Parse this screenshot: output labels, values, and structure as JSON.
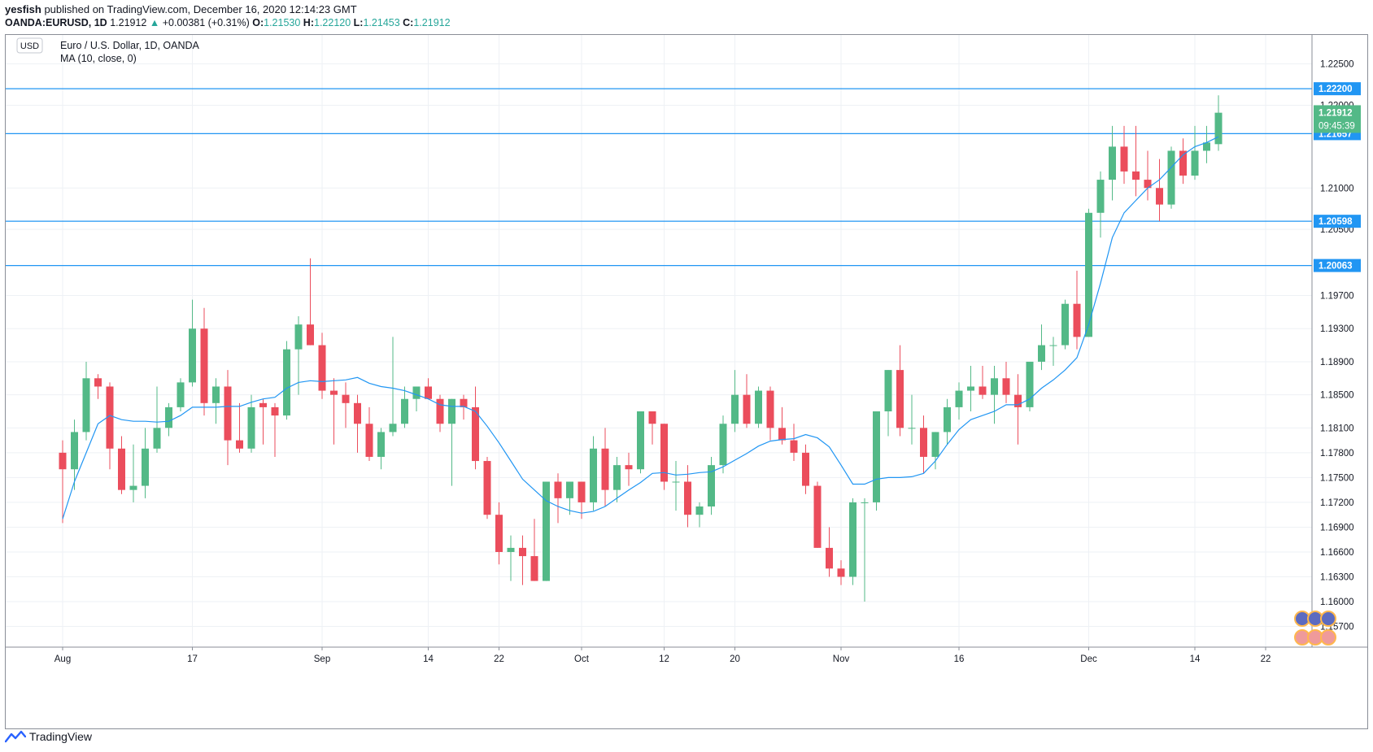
{
  "header": {
    "author": "yesfish",
    "published_text": "published on TradingView.com, December 16, 2020 12:14:23 GMT",
    "symbol": "OANDA:EURUSD, 1D",
    "last": "1.21912",
    "change_arrow": "▲",
    "change": "+0.00381 (+0.31%)",
    "o_label": "O:",
    "o": "1.21530",
    "h_label": "H:",
    "h": "1.22120",
    "l_label": "L:",
    "l": "1.21453",
    "c_label": "C:",
    "c": "1.21912"
  },
  "legend": {
    "currency_badge": "USD",
    "title": "Euro / U.S. Dollar, 1D, OANDA",
    "indicator": "MA (10, close, 0)"
  },
  "footer": {
    "brand": "TradingView",
    "logo_icon": "tradingview-logo-icon"
  },
  "colors": {
    "up": "#53b987",
    "down": "#eb4d5c",
    "ma": "#2196f3",
    "hline": "#2196f3",
    "grid": "#eef1f5",
    "axis_text": "#131722",
    "price_tag": "#53b987",
    "hline_tag": "#2196f3"
  },
  "chart_data": {
    "type": "candlestick",
    "title": "Euro / U.S. Dollar, 1D, OANDA",
    "y_axis": {
      "ticks": [
        "1.22500",
        "1.22000",
        "1.21000",
        "1.20500",
        "1.19700",
        "1.19300",
        "1.18900",
        "1.18500",
        "1.18100",
        "1.17800",
        "1.17500",
        "1.17200",
        "1.16900",
        "1.16600",
        "1.16300",
        "1.16000",
        "1.15700"
      ],
      "range": [
        1.1545,
        1.2285
      ]
    },
    "x_axis": {
      "labels": [
        {
          "text": "Aug",
          "index": 0
        },
        {
          "text": "17",
          "index": 11
        },
        {
          "text": "Sep",
          "index": 22
        },
        {
          "text": "14",
          "index": 31
        },
        {
          "text": "22",
          "index": 37
        },
        {
          "text": "Oct",
          "index": 44
        },
        {
          "text": "12",
          "index": 51
        },
        {
          "text": "20",
          "index": 57
        },
        {
          "text": "Nov",
          "index": 66
        },
        {
          "text": "16",
          "index": 76
        },
        {
          "text": "Dec",
          "index": 87
        },
        {
          "text": "14",
          "index": 96
        },
        {
          "text": "22",
          "index": 102
        }
      ]
    },
    "horizontal_lines": [
      {
        "price": 1.222,
        "label": "1.22200"
      },
      {
        "price": 1.21657,
        "label": "1.21657"
      },
      {
        "price": 1.20598,
        "label": "1.20598"
      },
      {
        "price": 1.20063,
        "label": "1.20063"
      }
    ],
    "price_tag": {
      "price": 1.21912,
      "label": "1.21912",
      "countdown": "09:45:39"
    },
    "candles": [
      [
        1.178,
        1.1795,
        1.1695,
        1.176
      ],
      [
        1.176,
        1.182,
        1.1735,
        1.1805
      ],
      [
        1.1805,
        1.189,
        1.1795,
        1.187
      ],
      [
        1.187,
        1.1875,
        1.1845,
        1.186
      ],
      [
        1.186,
        1.1865,
        1.176,
        1.1785
      ],
      [
        1.1785,
        1.18,
        1.173,
        1.1735
      ],
      [
        1.1735,
        1.179,
        1.172,
        1.174
      ],
      [
        1.174,
        1.181,
        1.1725,
        1.1785
      ],
      [
        1.1785,
        1.186,
        1.178,
        1.181
      ],
      [
        1.181,
        1.184,
        1.18,
        1.1835
      ],
      [
        1.1835,
        1.187,
        1.183,
        1.1865
      ],
      [
        1.1865,
        1.1965,
        1.186,
        1.193
      ],
      [
        1.193,
        1.1955,
        1.1825,
        1.184
      ],
      [
        1.184,
        1.187,
        1.1815,
        1.186
      ],
      [
        1.186,
        1.188,
        1.1765,
        1.1795
      ],
      [
        1.1795,
        1.184,
        1.178,
        1.1785
      ],
      [
        1.1785,
        1.185,
        1.178,
        1.1835
      ],
      [
        1.184,
        1.1845,
        1.179,
        1.1835
      ],
      [
        1.1835,
        1.184,
        1.1775,
        1.1825
      ],
      [
        1.1825,
        1.1915,
        1.182,
        1.1905
      ],
      [
        1.1905,
        1.1945,
        1.185,
        1.1935
      ],
      [
        1.1935,
        1.2015,
        1.191,
        1.191
      ],
      [
        1.191,
        1.1925,
        1.1845,
        1.1855
      ],
      [
        1.1855,
        1.187,
        1.179,
        1.185
      ],
      [
        1.185,
        1.1865,
        1.181,
        1.184
      ],
      [
        1.184,
        1.185,
        1.178,
        1.1815
      ],
      [
        1.1815,
        1.1835,
        1.177,
        1.1775
      ],
      [
        1.1775,
        1.181,
        1.176,
        1.1805
      ],
      [
        1.1805,
        1.192,
        1.18,
        1.1815
      ],
      [
        1.1815,
        1.186,
        1.181,
        1.1845
      ],
      [
        1.1845,
        1.186,
        1.183,
        1.186
      ],
      [
        1.186,
        1.187,
        1.1845,
        1.1845
      ],
      [
        1.1845,
        1.185,
        1.1805,
        1.1815
      ],
      [
        1.1815,
        1.1845,
        1.174,
        1.1845
      ],
      [
        1.1845,
        1.185,
        1.182,
        1.1835
      ],
      [
        1.1835,
        1.186,
        1.176,
        1.177
      ],
      [
        1.177,
        1.1775,
        1.17,
        1.1705
      ],
      [
        1.1705,
        1.172,
        1.1645,
        1.166
      ],
      [
        1.166,
        1.168,
        1.1625,
        1.1665
      ],
      [
        1.1665,
        1.168,
        1.162,
        1.1655
      ],
      [
        1.1655,
        1.17,
        1.1625,
        1.1625
      ],
      [
        1.1625,
        1.1745,
        1.1625,
        1.1745
      ],
      [
        1.1745,
        1.1755,
        1.1695,
        1.1725
      ],
      [
        1.1725,
        1.1745,
        1.1705,
        1.1745
      ],
      [
        1.1745,
        1.1745,
        1.17,
        1.172
      ],
      [
        1.172,
        1.18,
        1.171,
        1.1785
      ],
      [
        1.1785,
        1.181,
        1.1715,
        1.1735
      ],
      [
        1.1735,
        1.1775,
        1.172,
        1.1765
      ],
      [
        1.1765,
        1.178,
        1.174,
        1.176
      ],
      [
        1.176,
        1.183,
        1.1755,
        1.183
      ],
      [
        1.183,
        1.183,
        1.179,
        1.1815
      ],
      [
        1.1815,
        1.1815,
        1.1735,
        1.1745
      ],
      [
        1.1745,
        1.177,
        1.171,
        1.1745
      ],
      [
        1.1745,
        1.1765,
        1.169,
        1.1705
      ],
      [
        1.1705,
        1.172,
        1.169,
        1.1715
      ],
      [
        1.1715,
        1.1775,
        1.1705,
        1.1765
      ],
      [
        1.1765,
        1.1825,
        1.1755,
        1.1815
      ],
      [
        1.1815,
        1.188,
        1.1805,
        1.185
      ],
      [
        1.185,
        1.1875,
        1.181,
        1.1815
      ],
      [
        1.1815,
        1.186,
        1.181,
        1.1855
      ],
      [
        1.1855,
        1.186,
        1.1795,
        1.181
      ],
      [
        1.181,
        1.1835,
        1.179,
        1.1795
      ],
      [
        1.1795,
        1.1815,
        1.177,
        1.178
      ],
      [
        1.178,
        1.179,
        1.173,
        1.174
      ],
      [
        1.174,
        1.1745,
        1.1665,
        1.1665
      ],
      [
        1.1665,
        1.169,
        1.163,
        1.164
      ],
      [
        1.164,
        1.165,
        1.162,
        1.163
      ],
      [
        1.163,
        1.1725,
        1.162,
        1.172
      ],
      [
        1.172,
        1.1725,
        1.16,
        1.172
      ],
      [
        1.172,
        1.183,
        1.171,
        1.183
      ],
      [
        1.183,
        1.188,
        1.18,
        1.188
      ],
      [
        1.188,
        1.191,
        1.18,
        1.181
      ],
      [
        1.181,
        1.185,
        1.179,
        1.181
      ],
      [
        1.181,
        1.1825,
        1.1755,
        1.1775
      ],
      [
        1.1775,
        1.1805,
        1.176,
        1.1805
      ],
      [
        1.1805,
        1.1845,
        1.179,
        1.1835
      ],
      [
        1.1835,
        1.1865,
        1.182,
        1.1855
      ],
      [
        1.1855,
        1.1885,
        1.183,
        1.186
      ],
      [
        1.186,
        1.1885,
        1.1845,
        1.185
      ],
      [
        1.185,
        1.1885,
        1.1815,
        1.187
      ],
      [
        1.187,
        1.189,
        1.184,
        1.185
      ],
      [
        1.185,
        1.1875,
        1.179,
        1.1835
      ],
      [
        1.1835,
        1.189,
        1.183,
        1.189
      ],
      [
        1.189,
        1.1935,
        1.188,
        1.191
      ],
      [
        1.191,
        1.192,
        1.1885,
        1.191
      ],
      [
        1.191,
        1.1965,
        1.1905,
        1.196
      ],
      [
        1.196,
        1.2,
        1.1905,
        1.192
      ],
      [
        1.192,
        1.2075,
        1.192,
        1.207
      ],
      [
        1.207,
        1.212,
        1.204,
        1.211
      ],
      [
        1.211,
        1.2175,
        1.2085,
        1.215
      ],
      [
        1.215,
        1.2175,
        1.2105,
        1.212
      ],
      [
        1.212,
        1.2175,
        1.209,
        1.211
      ],
      [
        1.211,
        1.2145,
        1.2085,
        1.21
      ],
      [
        1.21,
        1.2135,
        1.206,
        1.208
      ],
      [
        1.208,
        1.215,
        1.2075,
        1.2145
      ],
      [
        1.2145,
        1.216,
        1.2105,
        1.2115
      ],
      [
        1.2115,
        1.2175,
        1.211,
        1.2145
      ],
      [
        1.2145,
        1.2175,
        1.213,
        1.2155
      ],
      [
        1.2153,
        1.2212,
        1.2145,
        1.2191
      ]
    ],
    "ma": {
      "name": "MA (10, close, 0)",
      "start_index": 0,
      "values": [
        1.17,
        1.1745,
        1.178,
        1.1815,
        1.1825,
        1.182,
        1.1818,
        1.1818,
        1.1817,
        1.1818,
        1.1825,
        1.1835,
        1.1835,
        1.1835,
        1.1836,
        1.1836,
        1.1841,
        1.1845,
        1.1847,
        1.1858,
        1.1865,
        1.1867,
        1.1866,
        1.1867,
        1.1868,
        1.1871,
        1.1864,
        1.186,
        1.1858,
        1.1855,
        1.185,
        1.1845,
        1.1838,
        1.1836,
        1.1836,
        1.183,
        1.1812,
        1.1792,
        1.177,
        1.1748,
        1.1735,
        1.1722,
        1.1715,
        1.171,
        1.1707,
        1.1709,
        1.1715,
        1.1725,
        1.1735,
        1.1744,
        1.1755,
        1.1756,
        1.1753,
        1.1754,
        1.1756,
        1.1757,
        1.1763,
        1.1771,
        1.1779,
        1.1788,
        1.1794,
        1.1796,
        1.1797,
        1.1802,
        1.1798,
        1.1787,
        1.1765,
        1.1742,
        1.1742,
        1.1748,
        1.175,
        1.175,
        1.1751,
        1.1755,
        1.177,
        1.179,
        1.1808,
        1.182,
        1.1825,
        1.183,
        1.1838,
        1.1838,
        1.1845,
        1.1858,
        1.1868,
        1.188,
        1.1895,
        1.1935,
        1.1985,
        1.204,
        1.207,
        1.2085,
        1.21,
        1.211,
        1.2125,
        1.214,
        1.215,
        1.2155,
        1.2162
      ]
    }
  }
}
